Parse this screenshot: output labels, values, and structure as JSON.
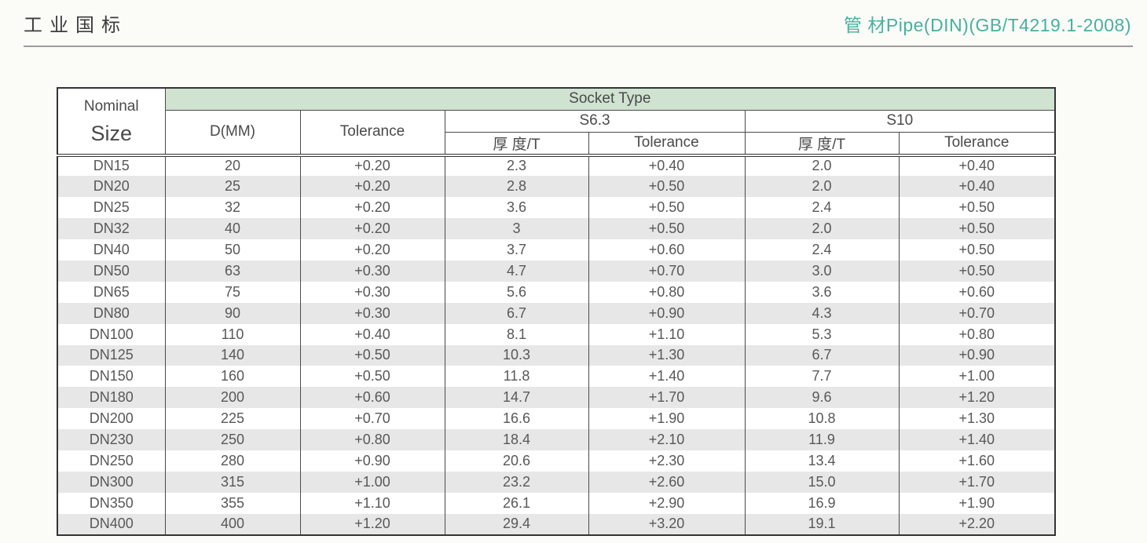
{
  "page": {
    "title_left": "工业国标",
    "title_right": "管 材Pipe(DIN)(GB/T4219.1-2008)"
  },
  "colors": {
    "accent_teal": "#45B29E",
    "banner_green": "#CFE3D0",
    "stripe_gray": "#E7E7E7",
    "border_dark": "#333336",
    "title_text": "#3D3D3F",
    "body_text": "#57585A"
  },
  "table": {
    "header": {
      "nominal": [
        "Nominal",
        "Size"
      ],
      "socket_type": "Socket Type",
      "col_d": "D(MM)",
      "col_tolerance": "Tolerance",
      "groups": [
        {
          "label": "S6.3",
          "sub": [
            "厚 度/T",
            "Tolerance"
          ]
        },
        {
          "label": "S10",
          "sub": [
            "厚 度/T",
            "Tolerance"
          ]
        }
      ]
    },
    "rows": [
      [
        "DN15",
        "20",
        "+0.20",
        "2.3",
        "+0.40",
        "2.0",
        "+0.40"
      ],
      [
        "DN20",
        "25",
        "+0.20",
        "2.8",
        "+0.50",
        "2.0",
        "+0.40"
      ],
      [
        "DN25",
        "32",
        "+0.20",
        "3.6",
        "+0.50",
        "2.4",
        "+0.50"
      ],
      [
        "DN32",
        "40",
        "+0.20",
        "3",
        "+0.50",
        "2.0",
        "+0.50"
      ],
      [
        "DN40",
        "50",
        "+0.20",
        "3.7",
        "+0.60",
        "2.4",
        "+0.50"
      ],
      [
        "DN50",
        "63",
        "+0.30",
        "4.7",
        "+0.70",
        "3.0",
        "+0.50"
      ],
      [
        "DN65",
        "75",
        "+0.30",
        "5.6",
        "+0.80",
        "3.6",
        "+0.60"
      ],
      [
        "DN80",
        "90",
        "+0.30",
        "6.7",
        "+0.90",
        "4.3",
        "+0.70"
      ],
      [
        "DN100",
        "110",
        "+0.40",
        "8.1",
        "+1.10",
        "5.3",
        "+0.80"
      ],
      [
        "DN125",
        "140",
        "+0.50",
        "10.3",
        "+1.30",
        "6.7",
        "+0.90"
      ],
      [
        "DN150",
        "160",
        "+0.50",
        "11.8",
        "+1.40",
        "7.7",
        "+1.00"
      ],
      [
        "DN180",
        "200",
        "+0.60",
        "14.7",
        "+1.70",
        "9.6",
        "+1.20"
      ],
      [
        "DN200",
        "225",
        "+0.70",
        "16.6",
        "+1.90",
        "10.8",
        "+1.30"
      ],
      [
        "DN230",
        "250",
        "+0.80",
        "18.4",
        "+2.10",
        "11.9",
        "+1.40"
      ],
      [
        "DN250",
        "280",
        "+0.90",
        "20.6",
        "+2.30",
        "13.4",
        "+1.60"
      ],
      [
        "DN300",
        "315",
        "+1.00",
        "23.2",
        "+2.60",
        "15.0",
        "+1.70"
      ],
      [
        "DN350",
        "355",
        "+1.10",
        "26.1",
        "+2.90",
        "16.9",
        "+1.90"
      ],
      [
        "DN400",
        "400",
        "+1.20",
        "29.4",
        "+3.20",
        "19.1",
        "+2.20"
      ]
    ]
  }
}
